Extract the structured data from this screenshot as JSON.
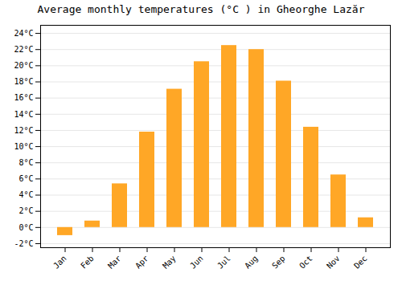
{
  "chart_data": {
    "type": "bar",
    "title": "Average monthly temperatures (°C ) in Gheorghe Lazăr",
    "categories": [
      "Jan",
      "Feb",
      "Mar",
      "Apr",
      "May",
      "Jun",
      "Jul",
      "Aug",
      "Sep",
      "Oct",
      "Nov",
      "Dec"
    ],
    "values": [
      -1.0,
      0.8,
      5.4,
      11.8,
      17.1,
      20.5,
      22.5,
      22.0,
      18.1,
      12.4,
      6.5,
      1.2
    ],
    "color": "#FFA726",
    "ylim": [
      -2.5,
      25
    ],
    "yticks": [
      {
        "value": -2,
        "label": "-2°C"
      },
      {
        "value": 0,
        "label": "0°C"
      },
      {
        "value": 2,
        "label": "2°C"
      },
      {
        "value": 4,
        "label": "4°C"
      },
      {
        "value": 6,
        "label": "6°C"
      },
      {
        "value": 8,
        "label": "8°C"
      },
      {
        "value": 10,
        "label": "10°C"
      },
      {
        "value": 12,
        "label": "12°C"
      },
      {
        "value": 14,
        "label": "14°C"
      },
      {
        "value": 16,
        "label": "16°C"
      },
      {
        "value": 18,
        "label": "18°C"
      },
      {
        "value": 20,
        "label": "20°C"
      },
      {
        "value": 22,
        "label": "22°C"
      },
      {
        "value": 24,
        "label": "24°C"
      }
    ],
    "grid": true
  }
}
